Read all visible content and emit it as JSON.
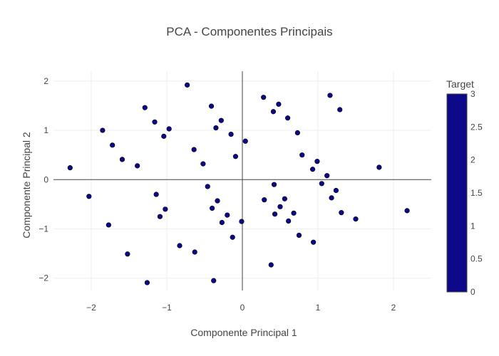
{
  "chart_data": {
    "type": "scatter",
    "title": "PCA - Componentes Principais",
    "xlabel": "Componente Principal 1",
    "ylabel": "Componente Principal 2",
    "xlim": [
      -2.5,
      2.5
    ],
    "ylim": [
      -2.25,
      2.2
    ],
    "xticks": [
      -2,
      -1,
      0,
      1,
      2
    ],
    "xtick_labels": [
      "−2",
      "−1",
      "0",
      "1",
      "2"
    ],
    "yticks": [
      -2,
      -1,
      0,
      1,
      2
    ],
    "ytick_labels": [
      "−2",
      "−1",
      "0",
      "1",
      "2"
    ],
    "grid": true,
    "zero_lines": true,
    "marker_color": "#0d0887",
    "points": [
      {
        "x": -2.28,
        "y": 0.24
      },
      {
        "x": -2.03,
        "y": -0.34
      },
      {
        "x": -1.85,
        "y": 1.0
      },
      {
        "x": -1.77,
        "y": -0.92
      },
      {
        "x": -1.72,
        "y": 0.7
      },
      {
        "x": -1.59,
        "y": 0.41
      },
      {
        "x": -1.52,
        "y": -1.51
      },
      {
        "x": -1.39,
        "y": 0.28
      },
      {
        "x": -1.29,
        "y": 1.46
      },
      {
        "x": -1.26,
        "y": -2.09
      },
      {
        "x": -1.16,
        "y": 1.17
      },
      {
        "x": -1.14,
        "y": -0.3
      },
      {
        "x": -1.09,
        "y": -0.75
      },
      {
        "x": -1.04,
        "y": 0.88
      },
      {
        "x": -1.02,
        "y": -0.6
      },
      {
        "x": -0.97,
        "y": 1.03
      },
      {
        "x": -0.83,
        "y": -1.34
      },
      {
        "x": -0.73,
        "y": 1.92
      },
      {
        "x": -0.64,
        "y": 0.61
      },
      {
        "x": -0.63,
        "y": -1.47
      },
      {
        "x": -0.52,
        "y": 0.32
      },
      {
        "x": -0.46,
        "y": -0.14
      },
      {
        "x": -0.41,
        "y": 1.49
      },
      {
        "x": -0.4,
        "y": -0.58
      },
      {
        "x": -0.38,
        "y": -2.05
      },
      {
        "x": -0.35,
        "y": 1.05
      },
      {
        "x": -0.33,
        "y": -0.43
      },
      {
        "x": -0.28,
        "y": 1.2
      },
      {
        "x": -0.27,
        "y": -0.87
      },
      {
        "x": -0.2,
        "y": -0.72
      },
      {
        "x": -0.15,
        "y": 0.92
      },
      {
        "x": -0.13,
        "y": -1.17
      },
      {
        "x": -0.09,
        "y": 0.47
      },
      {
        "x": -0.01,
        "y": -0.85
      },
      {
        "x": 0.04,
        "y": 0.78
      },
      {
        "x": 0.28,
        "y": 1.67
      },
      {
        "x": 0.29,
        "y": -0.41
      },
      {
        "x": 0.38,
        "y": -1.73
      },
      {
        "x": 0.41,
        "y": 1.38
      },
      {
        "x": 0.42,
        "y": -0.1
      },
      {
        "x": 0.43,
        "y": -0.7
      },
      {
        "x": 0.48,
        "y": 1.53
      },
      {
        "x": 0.5,
        "y": -0.55
      },
      {
        "x": 0.56,
        "y": -0.39
      },
      {
        "x": 0.6,
        "y": 1.25
      },
      {
        "x": 0.61,
        "y": -0.84
      },
      {
        "x": 0.68,
        "y": -0.68
      },
      {
        "x": 0.73,
        "y": 0.95
      },
      {
        "x": 0.75,
        "y": -1.13
      },
      {
        "x": 0.79,
        "y": 0.5
      },
      {
        "x": 0.93,
        "y": 0.21
      },
      {
        "x": 0.94,
        "y": -1.27
      },
      {
        "x": 0.99,
        "y": 0.37
      },
      {
        "x": 1.05,
        "y": -0.08
      },
      {
        "x": 1.12,
        "y": 0.08
      },
      {
        "x": 1.16,
        "y": 1.71
      },
      {
        "x": 1.18,
        "y": -0.37
      },
      {
        "x": 1.24,
        "y": -0.22
      },
      {
        "x": 1.29,
        "y": 1.42
      },
      {
        "x": 1.31,
        "y": -0.67
      },
      {
        "x": 1.5,
        "y": -0.8
      },
      {
        "x": 1.81,
        "y": 0.25
      },
      {
        "x": 2.18,
        "y": -0.63
      }
    ],
    "colorbar": {
      "title": "Target",
      "range": [
        0,
        3
      ],
      "ticks": [
        0,
        0.5,
        1,
        1.5,
        2,
        2.5,
        3
      ],
      "tick_labels": [
        "0",
        "0.5",
        "1",
        "1.5",
        "2",
        "2.5",
        "3"
      ],
      "color": "#0d0887"
    }
  }
}
